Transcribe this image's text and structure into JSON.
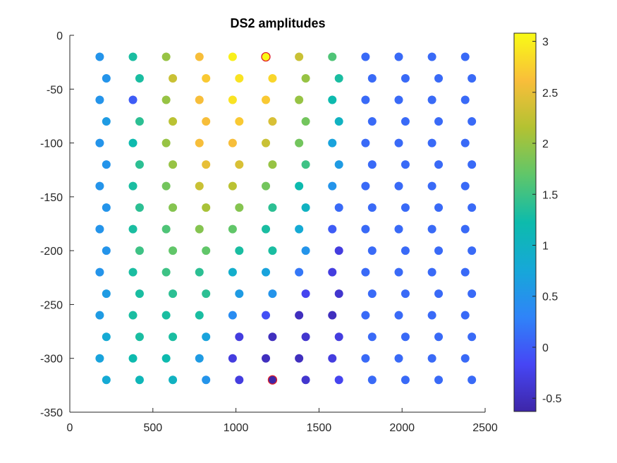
{
  "chart_data": {
    "type": "scatter",
    "title": "DS2 amplitudes",
    "xlabel": "",
    "ylabel": "",
    "xlim": [
      0,
      2500
    ],
    "ylim": [
      -350,
      0
    ],
    "x_ticks": [
      "0",
      "500",
      "1000",
      "1500",
      "2000",
      "2500"
    ],
    "x_tick_values": [
      0,
      500,
      1000,
      1500,
      2000,
      2500
    ],
    "y_ticks": [
      "0",
      "-50",
      "-100",
      "-150",
      "-200",
      "-250",
      "-300",
      "-350"
    ],
    "y_tick_values": [
      0,
      -50,
      -100,
      -150,
      -200,
      -250,
      -300,
      -350
    ],
    "grid": false,
    "colormap": "parula",
    "colorbar": {
      "clim": [
        -0.63,
        3.08
      ],
      "ticks": [
        "-0.5",
        "0",
        "0.5",
        "1",
        "1.5",
        "2",
        "2.5",
        "3"
      ],
      "tick_values": [
        -0.5,
        0,
        0.5,
        1,
        1.5,
        2,
        2.5,
        3
      ]
    },
    "highlight_color": "#e0202a",
    "points": [
      {
        "x": 180,
        "y": -20,
        "v": 0.5
      },
      {
        "x": 380,
        "y": -20,
        "v": 1.3
      },
      {
        "x": 580,
        "y": -20,
        "v": 2.0
      },
      {
        "x": 780,
        "y": -20,
        "v": 2.6
      },
      {
        "x": 980,
        "y": -20,
        "v": 3.0
      },
      {
        "x": 1180,
        "y": -20,
        "v": 3.08,
        "highlight": true
      },
      {
        "x": 1380,
        "y": -20,
        "v": 2.3
      },
      {
        "x": 1580,
        "y": -20,
        "v": 1.6
      },
      {
        "x": 1780,
        "y": -20,
        "v": 0.1
      },
      {
        "x": 1980,
        "y": -20,
        "v": 0.1
      },
      {
        "x": 2180,
        "y": -20,
        "v": 0.1
      },
      {
        "x": 2380,
        "y": -20,
        "v": 0.1
      },
      {
        "x": 220,
        "y": -40,
        "v": 0.5
      },
      {
        "x": 420,
        "y": -40,
        "v": 1.3
      },
      {
        "x": 620,
        "y": -40,
        "v": 2.3
      },
      {
        "x": 820,
        "y": -40,
        "v": 2.7
      },
      {
        "x": 1020,
        "y": -40,
        "v": 2.9
      },
      {
        "x": 1220,
        "y": -40,
        "v": 2.8
      },
      {
        "x": 1420,
        "y": -40,
        "v": 2.0
      },
      {
        "x": 1620,
        "y": -40,
        "v": 1.3
      },
      {
        "x": 1820,
        "y": -40,
        "v": 0.1
      },
      {
        "x": 2020,
        "y": -40,
        "v": 0.1
      },
      {
        "x": 2220,
        "y": -40,
        "v": 0.1
      },
      {
        "x": 2420,
        "y": -40,
        "v": 0.1
      },
      {
        "x": 180,
        "y": -60,
        "v": 0.5
      },
      {
        "x": 380,
        "y": -60,
        "v": 0.0
      },
      {
        "x": 580,
        "y": -60,
        "v": 2.0
      },
      {
        "x": 780,
        "y": -60,
        "v": 2.6
      },
      {
        "x": 980,
        "y": -60,
        "v": 2.9
      },
      {
        "x": 1180,
        "y": -60,
        "v": 2.7
      },
      {
        "x": 1380,
        "y": -60,
        "v": 2.0
      },
      {
        "x": 1580,
        "y": -60,
        "v": 1.2
      },
      {
        "x": 1780,
        "y": -60,
        "v": 0.1
      },
      {
        "x": 1980,
        "y": -60,
        "v": 0.1
      },
      {
        "x": 2180,
        "y": -60,
        "v": 0.1
      },
      {
        "x": 2380,
        "y": -60,
        "v": 0.1
      },
      {
        "x": 220,
        "y": -80,
        "v": 0.6
      },
      {
        "x": 420,
        "y": -80,
        "v": 1.4
      },
      {
        "x": 620,
        "y": -80,
        "v": 2.2
      },
      {
        "x": 820,
        "y": -80,
        "v": 2.6
      },
      {
        "x": 1020,
        "y": -80,
        "v": 2.7
      },
      {
        "x": 1220,
        "y": -80,
        "v": 2.4
      },
      {
        "x": 1420,
        "y": -80,
        "v": 1.8
      },
      {
        "x": 1620,
        "y": -80,
        "v": 1.0
      },
      {
        "x": 1820,
        "y": -80,
        "v": 0.1
      },
      {
        "x": 2020,
        "y": -80,
        "v": 0.1
      },
      {
        "x": 2220,
        "y": -80,
        "v": 0.1
      },
      {
        "x": 2420,
        "y": -80,
        "v": 0.1
      },
      {
        "x": 180,
        "y": -100,
        "v": 0.5
      },
      {
        "x": 380,
        "y": -100,
        "v": 1.2
      },
      {
        "x": 580,
        "y": -100,
        "v": 2.0
      },
      {
        "x": 780,
        "y": -100,
        "v": 2.6
      },
      {
        "x": 980,
        "y": -100,
        "v": 2.6
      },
      {
        "x": 1180,
        "y": -100,
        "v": 2.3
      },
      {
        "x": 1380,
        "y": -100,
        "v": 1.8
      },
      {
        "x": 1580,
        "y": -100,
        "v": 0.7
      },
      {
        "x": 1780,
        "y": -100,
        "v": 0.1
      },
      {
        "x": 1980,
        "y": -100,
        "v": 0.1
      },
      {
        "x": 2180,
        "y": -100,
        "v": 0.1
      },
      {
        "x": 2380,
        "y": -100,
        "v": 0.1
      },
      {
        "x": 220,
        "y": -120,
        "v": 0.5
      },
      {
        "x": 420,
        "y": -120,
        "v": 1.4
      },
      {
        "x": 620,
        "y": -120,
        "v": 2.0
      },
      {
        "x": 820,
        "y": -120,
        "v": 2.5
      },
      {
        "x": 1020,
        "y": -120,
        "v": 2.4
      },
      {
        "x": 1220,
        "y": -120,
        "v": 2.0
      },
      {
        "x": 1420,
        "y": -120,
        "v": 1.5
      },
      {
        "x": 1620,
        "y": -120,
        "v": 0.6
      },
      {
        "x": 1820,
        "y": -120,
        "v": 0.1
      },
      {
        "x": 2020,
        "y": -120,
        "v": 0.1
      },
      {
        "x": 2220,
        "y": -120,
        "v": 0.1
      },
      {
        "x": 2420,
        "y": -120,
        "v": 0.1
      },
      {
        "x": 180,
        "y": -140,
        "v": 0.5
      },
      {
        "x": 380,
        "y": -140,
        "v": 1.3
      },
      {
        "x": 580,
        "y": -140,
        "v": 1.8
      },
      {
        "x": 780,
        "y": -140,
        "v": 2.3
      },
      {
        "x": 980,
        "y": -140,
        "v": 2.2
      },
      {
        "x": 1180,
        "y": -140,
        "v": 1.8
      },
      {
        "x": 1380,
        "y": -140,
        "v": 1.2
      },
      {
        "x": 1580,
        "y": -140,
        "v": 0.5
      },
      {
        "x": 1780,
        "y": -140,
        "v": 0.1
      },
      {
        "x": 1980,
        "y": -140,
        "v": 0.1
      },
      {
        "x": 2180,
        "y": -140,
        "v": 0.1
      },
      {
        "x": 2380,
        "y": -140,
        "v": 0.1
      },
      {
        "x": 220,
        "y": -160,
        "v": 0.5
      },
      {
        "x": 420,
        "y": -160,
        "v": 1.4
      },
      {
        "x": 620,
        "y": -160,
        "v": 1.9
      },
      {
        "x": 820,
        "y": -160,
        "v": 2.1
      },
      {
        "x": 1020,
        "y": -160,
        "v": 1.9
      },
      {
        "x": 1220,
        "y": -160,
        "v": 1.4
      },
      {
        "x": 1420,
        "y": -160,
        "v": 1.0
      },
      {
        "x": 1620,
        "y": -160,
        "v": 0.1
      },
      {
        "x": 1820,
        "y": -160,
        "v": 0.1
      },
      {
        "x": 2020,
        "y": -160,
        "v": 0.1
      },
      {
        "x": 2220,
        "y": -160,
        "v": 0.1
      },
      {
        "x": 2420,
        "y": -160,
        "v": 0.1
      },
      {
        "x": 180,
        "y": -180,
        "v": 0.5
      },
      {
        "x": 380,
        "y": -180,
        "v": 1.3
      },
      {
        "x": 580,
        "y": -180,
        "v": 1.6
      },
      {
        "x": 780,
        "y": -180,
        "v": 1.9
      },
      {
        "x": 980,
        "y": -180,
        "v": 1.7
      },
      {
        "x": 1180,
        "y": -180,
        "v": 1.3
      },
      {
        "x": 1380,
        "y": -180,
        "v": 0.8
      },
      {
        "x": 1580,
        "y": -180,
        "v": 0.0
      },
      {
        "x": 1780,
        "y": -180,
        "v": 0.1
      },
      {
        "x": 1980,
        "y": -180,
        "v": 0.1
      },
      {
        "x": 2180,
        "y": -180,
        "v": 0.1
      },
      {
        "x": 2380,
        "y": -180,
        "v": 0.1
      },
      {
        "x": 220,
        "y": -200,
        "v": 0.5
      },
      {
        "x": 420,
        "y": -200,
        "v": 1.5
      },
      {
        "x": 620,
        "y": -200,
        "v": 1.7
      },
      {
        "x": 820,
        "y": -200,
        "v": 1.7
      },
      {
        "x": 1020,
        "y": -200,
        "v": 1.3
      },
      {
        "x": 1220,
        "y": -200,
        "v": 1.3
      },
      {
        "x": 1420,
        "y": -200,
        "v": 0.5
      },
      {
        "x": 1620,
        "y": -200,
        "v": -0.3
      },
      {
        "x": 1820,
        "y": -200,
        "v": 0.1
      },
      {
        "x": 2020,
        "y": -200,
        "v": 0.1
      },
      {
        "x": 2220,
        "y": -200,
        "v": 0.1
      },
      {
        "x": 2420,
        "y": -200,
        "v": 0.1
      },
      {
        "x": 180,
        "y": -220,
        "v": 0.5
      },
      {
        "x": 380,
        "y": -220,
        "v": 1.3
      },
      {
        "x": 580,
        "y": -220,
        "v": 1.5
      },
      {
        "x": 780,
        "y": -220,
        "v": 1.4
      },
      {
        "x": 980,
        "y": -220,
        "v": 0.9
      },
      {
        "x": 1180,
        "y": -220,
        "v": 0.7
      },
      {
        "x": 1380,
        "y": -220,
        "v": 0.2
      },
      {
        "x": 1580,
        "y": -220,
        "v": -0.3
      },
      {
        "x": 1780,
        "y": -220,
        "v": 0.1
      },
      {
        "x": 1980,
        "y": -220,
        "v": 0.1
      },
      {
        "x": 2180,
        "y": -220,
        "v": 0.1
      },
      {
        "x": 2380,
        "y": -220,
        "v": 0.1
      },
      {
        "x": 220,
        "y": -240,
        "v": 0.6
      },
      {
        "x": 420,
        "y": -240,
        "v": 1.3
      },
      {
        "x": 620,
        "y": -240,
        "v": 1.4
      },
      {
        "x": 820,
        "y": -240,
        "v": 1.4
      },
      {
        "x": 1020,
        "y": -240,
        "v": 0.6
      },
      {
        "x": 1220,
        "y": -240,
        "v": 0.5
      },
      {
        "x": 1420,
        "y": -240,
        "v": -0.2
      },
      {
        "x": 1620,
        "y": -240,
        "v": -0.4
      },
      {
        "x": 1820,
        "y": -240,
        "v": 0.1
      },
      {
        "x": 2020,
        "y": -240,
        "v": 0.1
      },
      {
        "x": 2220,
        "y": -240,
        "v": 0.1
      },
      {
        "x": 2420,
        "y": -240,
        "v": 0.1
      },
      {
        "x": 180,
        "y": -260,
        "v": 0.6
      },
      {
        "x": 380,
        "y": -260,
        "v": 1.3
      },
      {
        "x": 580,
        "y": -260,
        "v": 1.3
      },
      {
        "x": 780,
        "y": -260,
        "v": 1.3
      },
      {
        "x": 980,
        "y": -260,
        "v": 0.4
      },
      {
        "x": 1180,
        "y": -260,
        "v": -0.1
      },
      {
        "x": 1380,
        "y": -260,
        "v": -0.5
      },
      {
        "x": 1580,
        "y": -260,
        "v": -0.5
      },
      {
        "x": 1780,
        "y": -260,
        "v": 0.1
      },
      {
        "x": 1980,
        "y": -260,
        "v": 0.1
      },
      {
        "x": 2180,
        "y": -260,
        "v": 0.1
      },
      {
        "x": 2380,
        "y": -260,
        "v": 0.1
      },
      {
        "x": 220,
        "y": -280,
        "v": 0.8
      },
      {
        "x": 420,
        "y": -280,
        "v": 1.3
      },
      {
        "x": 620,
        "y": -280,
        "v": 1.3
      },
      {
        "x": 820,
        "y": -280,
        "v": 0.7
      },
      {
        "x": 1020,
        "y": -280,
        "v": -0.3
      },
      {
        "x": 1220,
        "y": -280,
        "v": -0.5
      },
      {
        "x": 1420,
        "y": -280,
        "v": -0.4
      },
      {
        "x": 1620,
        "y": -280,
        "v": -0.3
      },
      {
        "x": 1820,
        "y": -280,
        "v": 0.1
      },
      {
        "x": 2020,
        "y": -280,
        "v": 0.1
      },
      {
        "x": 2220,
        "y": -280,
        "v": 0.1
      },
      {
        "x": 2420,
        "y": -280,
        "v": 0.1
      },
      {
        "x": 180,
        "y": -300,
        "v": 0.7
      },
      {
        "x": 380,
        "y": -300,
        "v": 1.2
      },
      {
        "x": 580,
        "y": -300,
        "v": 1.2
      },
      {
        "x": 780,
        "y": -300,
        "v": 0.6
      },
      {
        "x": 980,
        "y": -300,
        "v": -0.3
      },
      {
        "x": 1180,
        "y": -300,
        "v": -0.5
      },
      {
        "x": 1380,
        "y": -300,
        "v": -0.5
      },
      {
        "x": 1580,
        "y": -300,
        "v": -0.3
      },
      {
        "x": 1780,
        "y": -300,
        "v": 0.1
      },
      {
        "x": 1980,
        "y": -300,
        "v": 0.1
      },
      {
        "x": 2180,
        "y": -300,
        "v": 0.1
      },
      {
        "x": 2380,
        "y": -300,
        "v": 0.1
      },
      {
        "x": 220,
        "y": -320,
        "v": 0.8
      },
      {
        "x": 420,
        "y": -320,
        "v": 1.1
      },
      {
        "x": 620,
        "y": -320,
        "v": 1.0
      },
      {
        "x": 820,
        "y": -320,
        "v": 0.5
      },
      {
        "x": 1020,
        "y": -320,
        "v": -0.3
      },
      {
        "x": 1220,
        "y": -320,
        "v": -0.63,
        "highlight": true
      },
      {
        "x": 1420,
        "y": -320,
        "v": -0.4
      },
      {
        "x": 1620,
        "y": -320,
        "v": -0.2
      },
      {
        "x": 1820,
        "y": -320,
        "v": 0.1
      },
      {
        "x": 2020,
        "y": -320,
        "v": 0.1
      },
      {
        "x": 2220,
        "y": -320,
        "v": 0.1
      },
      {
        "x": 2420,
        "y": -320,
        "v": 0.1
      }
    ]
  }
}
